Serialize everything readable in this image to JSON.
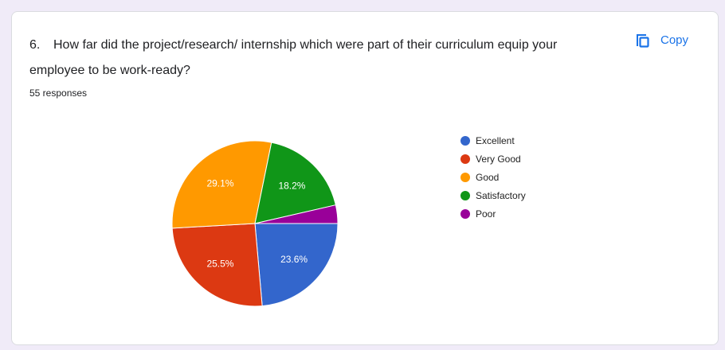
{
  "question_number": "6.",
  "copy_button": "Copy",
  "chart_data": {
    "type": "pie",
    "title": "How far did the project/research/ internship which were part of their curriculum equip your employee to be work-ready?",
    "subtitle": "55 responses",
    "categories": [
      "Excellent",
      "Very Good",
      "Good",
      "Satisfactory",
      "Poor"
    ],
    "values": [
      23.6,
      25.5,
      29.1,
      18.2,
      3.6
    ],
    "value_labels": [
      "23.6%",
      "25.5%",
      "29.1%",
      "18.2%",
      null
    ],
    "colors": [
      "#3366cc",
      "#dc3912",
      "#ff9900",
      "#109618",
      "#990099"
    ],
    "legend": "right"
  }
}
